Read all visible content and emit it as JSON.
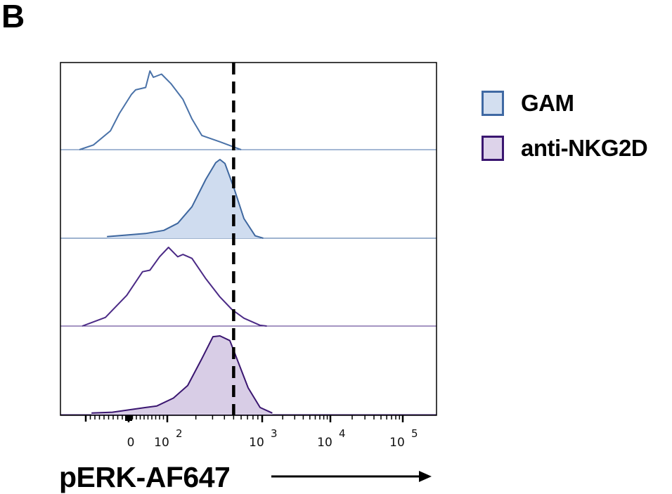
{
  "panel_label": "B",
  "chart_data": {
    "type": "histogram",
    "layout": "stacked offset histograms",
    "xlabel": "pERK-AF647",
    "x_scale": "biexponential",
    "xlim": [
      -150,
      100000
    ],
    "x_ticks": [
      {
        "value": 0,
        "base": "0",
        "exp": ""
      },
      {
        "value": 100,
        "base": "10",
        "exp": "2"
      },
      {
        "value": 1000,
        "base": "10",
        "exp": "3"
      },
      {
        "value": 10000,
        "base": "10",
        "exp": "4"
      },
      {
        "value": 100000,
        "base": "10",
        "exp": "5"
      }
    ],
    "y_unit": "% of max (normalized per histogram)",
    "threshold_line": {
      "value": 500,
      "style": "dashed",
      "color": "#000000"
    },
    "legend": {
      "placement": "right",
      "entries": [
        {
          "label": "GAM",
          "stroke": "#3f69a3",
          "fill": "#d3dff0"
        },
        {
          "label": "anti-NKG2D",
          "stroke": "#3a1670",
          "fill": "#ddd3ea"
        }
      ]
    },
    "series": [
      {
        "group": "GAM",
        "filled": false,
        "stroke": "#4a72a8",
        "fill": "none",
        "x": [
          -127,
          -91,
          -47,
          -24,
          7,
          18,
          44,
          55,
          64,
          85,
          109,
          146,
          182,
          231,
          359,
          570,
          599
        ],
        "y": [
          0,
          6,
          24,
          46,
          70,
          76,
          79,
          100,
          92,
          96,
          84,
          64,
          39,
          18,
          10,
          1,
          0
        ]
      },
      {
        "group": "GAM",
        "filled": true,
        "stroke": "#3e679f",
        "fill": "#cfdcef",
        "x": [
          -56,
          44,
          91,
          129,
          182,
          255,
          324,
          359,
          405,
          506,
          642,
          843,
          1036
        ],
        "y": [
          2,
          6,
          10,
          19,
          40,
          75,
          96,
          100,
          95,
          63,
          25,
          3,
          0
        ]
      },
      {
        "group": "anti-NKG2D",
        "filled": false,
        "stroke": "#4b2a86",
        "fill": "none",
        "x": [
          -120,
          -60,
          -5,
          36,
          55,
          80,
          103,
          129,
          146,
          182,
          255,
          359,
          480,
          642,
          950,
          1166
        ],
        "y": [
          0,
          11,
          39,
          69,
          71,
          88,
          100,
          88,
          91,
          86,
          60,
          37,
          21,
          10,
          1,
          0
        ]
      },
      {
        "group": "anti-NKG2D",
        "filled": true,
        "stroke": "#3a1670",
        "fill": "#d8cde6",
        "x": [
          -96,
          -42,
          44,
          73,
          116,
          164,
          231,
          303,
          359,
          456,
          506,
          711,
          950,
          1406
        ],
        "y": [
          2,
          3,
          9,
          11,
          21,
          37,
          71,
          99,
          100,
          94,
          80,
          34,
          9,
          2
        ]
      }
    ]
  }
}
